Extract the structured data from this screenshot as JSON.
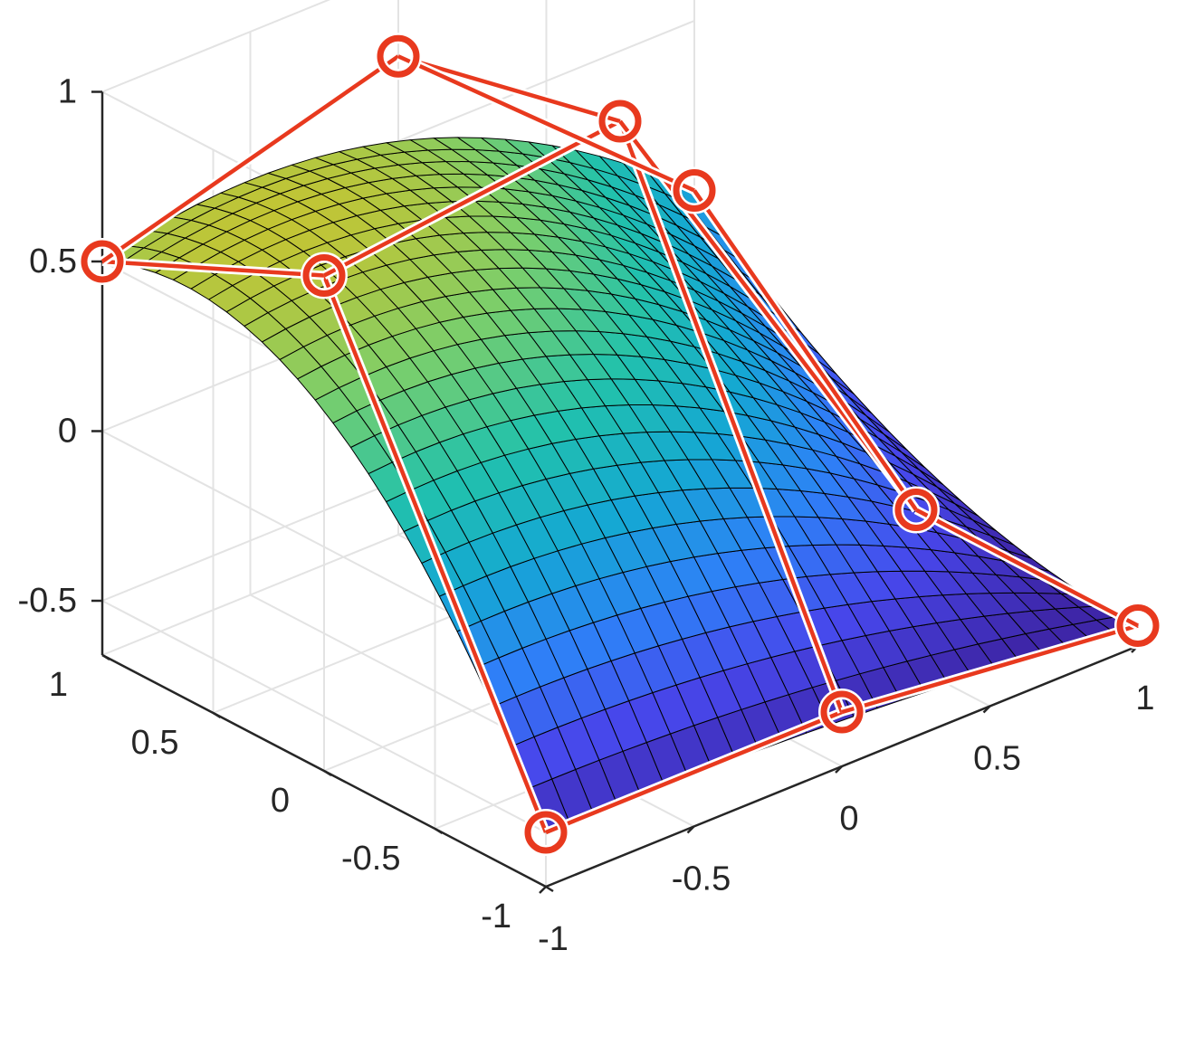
{
  "chart_data": {
    "type": "surface",
    "x_ticks": [
      "-1",
      "-0.5",
      "0",
      "0.5",
      "1"
    ],
    "y_ticks": [
      "-1",
      "-0.5",
      "0",
      "0.5",
      "1"
    ],
    "z_ticks": [
      "-0.5",
      "0",
      "0.5",
      "1"
    ],
    "xlim": [
      -1,
      1
    ],
    "ylim": [
      -1,
      1
    ],
    "zlim": [
      -0.66,
      1
    ],
    "grid": true,
    "surface_colormap": "parula",
    "surface_mesh": 25,
    "control_points": [
      [
        [
          -1,
          -1,
          -0.5
        ],
        [
          -1,
          0,
          0.8
        ],
        [
          -1,
          1,
          0.5
        ]
      ],
      [
        [
          0,
          -1,
          -0.5
        ],
        [
          0,
          0,
          0.9
        ],
        [
          0,
          1,
          0.75
        ]
      ],
      [
        [
          1,
          -1,
          -0.6
        ],
        [
          1,
          0,
          -0.6
        ],
        [
          1,
          1,
          0
        ]
      ]
    ],
    "control_net_color": "#e8391e"
  }
}
